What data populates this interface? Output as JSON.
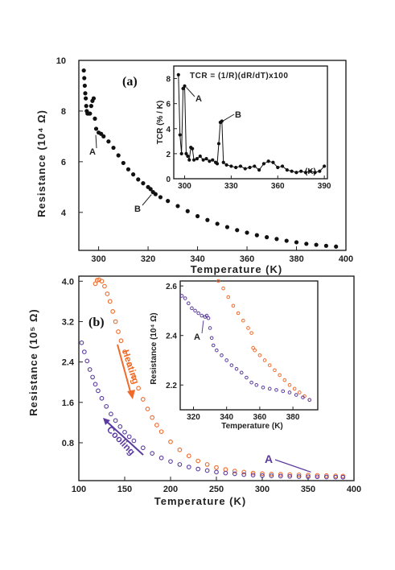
{
  "chart_data": [
    {
      "id": "a",
      "type": "scatter",
      "panel_label": "(a)",
      "xlabel": "Temperature (K)",
      "ylabel": "Resistance (10⁴ Ω)",
      "xlim": [
        292,
        400
      ],
      "ylim": [
        2.5,
        10
      ],
      "xticks": [
        "300",
        "320",
        "340",
        "360",
        "380",
        "400"
      ],
      "yticks": [
        "4",
        "6",
        "8",
        "10"
      ],
      "series": [
        {
          "marker_color": "#111111",
          "points": [
            [
              294,
              9.6
            ],
            [
              294.2,
              9.3
            ],
            [
              294.4,
              9.0
            ],
            [
              294.6,
              8.7
            ],
            [
              294.8,
              8.5
            ],
            [
              295,
              8.2
            ],
            [
              295.2,
              8.0
            ],
            [
              295.5,
              7.9
            ],
            [
              296,
              7.9
            ],
            [
              296.5,
              7.9
            ],
            [
              297,
              8.2
            ],
            [
              297.5,
              8.4
            ],
            [
              298,
              8.5
            ],
            [
              298.5,
              7.7
            ],
            [
              299,
              7.3
            ],
            [
              300,
              7.15
            ],
            [
              301,
              7.1
            ],
            [
              302,
              7.0
            ],
            [
              304,
              6.8
            ],
            [
              306,
              6.55
            ],
            [
              308,
              6.25
            ],
            [
              310,
              5.95
            ],
            [
              312,
              5.7
            ],
            [
              314,
              5.5
            ],
            [
              316,
              5.3
            ],
            [
              318,
              5.15
            ],
            [
              320,
              5.0
            ],
            [
              321,
              4.92
            ],
            [
              322,
              4.8
            ],
            [
              323,
              4.72
            ],
            [
              325,
              4.6
            ],
            [
              328,
              4.45
            ],
            [
              332,
              4.25
            ],
            [
              336,
              4.05
            ],
            [
              340,
              3.85
            ],
            [
              344,
              3.7
            ],
            [
              348,
              3.55
            ],
            [
              352,
              3.42
            ],
            [
              356,
              3.3
            ],
            [
              360,
              3.2
            ],
            [
              364,
              3.1
            ],
            [
              368,
              3.02
            ],
            [
              372,
              2.95
            ],
            [
              376,
              2.88
            ],
            [
              380,
              2.82
            ],
            [
              384,
              2.76
            ],
            [
              388,
              2.72
            ],
            [
              392,
              2.68
            ],
            [
              396,
              2.65
            ]
          ]
        }
      ],
      "annotations": [
        {
          "text": "A",
          "x": 299.5,
          "y": 7.15
        },
        {
          "text": "B",
          "x": 322,
          "y": 4.8
        }
      ]
    },
    {
      "id": "a-inset",
      "type": "line",
      "title": "TCR = (1/R)(dR/dT)x100",
      "xlabel": "(K)",
      "ylabel": "TCR (% / K)",
      "xlim": [
        293,
        392
      ],
      "ylim": [
        0,
        9
      ],
      "xticks": [
        "300",
        "330",
        "360",
        "390"
      ],
      "yticks": [
        "0",
        "2",
        "4",
        "6",
        "8"
      ],
      "series": [
        {
          "line_color": "#111111",
          "points": [
            [
              296,
              8.3
            ],
            [
              297,
              3.5
            ],
            [
              298,
              2.0
            ],
            [
              299,
              7.2
            ],
            [
              300,
              7.4
            ],
            [
              301,
              2.0
            ],
            [
              302,
              1.8
            ],
            [
              303,
              1.5
            ],
            [
              304,
              2.5
            ],
            [
              305,
              2.4
            ],
            [
              306,
              1.5
            ],
            [
              308,
              1.6
            ],
            [
              310,
              1.8
            ],
            [
              312,
              1.5
            ],
            [
              314,
              1.6
            ],
            [
              316,
              1.4
            ],
            [
              318,
              1.5
            ],
            [
              320,
              1.3
            ],
            [
              321,
              1.2
            ],
            [
              322,
              2.8
            ],
            [
              323,
              4.5
            ],
            [
              324,
              4.6
            ],
            [
              325,
              1.3
            ],
            [
              327,
              1.1
            ],
            [
              330,
              1.0
            ],
            [
              333,
              0.9
            ],
            [
              336,
              1.0
            ],
            [
              339,
              0.8
            ],
            [
              342,
              0.9
            ],
            [
              345,
              1.0
            ],
            [
              348,
              0.7
            ],
            [
              351,
              1.2
            ],
            [
              354,
              1.4
            ],
            [
              357,
              1.3
            ],
            [
              360,
              0.9
            ],
            [
              363,
              1.0
            ],
            [
              366,
              0.7
            ],
            [
              369,
              0.6
            ],
            [
              372,
              0.5
            ],
            [
              375,
              0.6
            ],
            [
              378,
              0.5
            ],
            [
              381,
              0.6
            ],
            [
              384,
              0.5
            ],
            [
              387,
              0.6
            ],
            [
              390,
              1.0
            ]
          ]
        }
      ],
      "annotations": [
        {
          "text": "A",
          "x": 300,
          "y": 7.3
        },
        {
          "text": "B",
          "x": 323.5,
          "y": 4.6
        }
      ]
    },
    {
      "id": "b",
      "type": "scatter",
      "panel_label": "(b)",
      "xlabel": "Temperature (K)",
      "ylabel": "Resistance (10⁵ Ω)",
      "xlim": [
        100,
        400
      ],
      "ylim": [
        0.05,
        4.1
      ],
      "xticks": [
        "100",
        "150",
        "200",
        "250",
        "300",
        "350",
        "400"
      ],
      "yticks": [
        "0.8",
        "1.6",
        "2.4",
        "3.2",
        "4.0"
      ],
      "series": [
        {
          "name": "Heating",
          "color": "#f06a2a",
          "points": [
            [
              118,
              3.95
            ],
            [
              120,
              4.02
            ],
            [
              122,
              4.03
            ],
            [
              125,
              4.0
            ],
            [
              128,
              3.9
            ],
            [
              131,
              3.75
            ],
            [
              134,
              3.6
            ],
            [
              137,
              3.4
            ],
            [
              140,
              3.2
            ],
            [
              143,
              3.0
            ],
            [
              146,
              2.82
            ],
            [
              150,
              2.6
            ],
            [
              155,
              2.35
            ],
            [
              160,
              2.1
            ],
            [
              165,
              1.88
            ],
            [
              170,
              1.66
            ],
            [
              175,
              1.47
            ],
            [
              180,
              1.3
            ],
            [
              185,
              1.15
            ],
            [
              190,
              1.02
            ],
            [
              200,
              0.82
            ],
            [
              210,
              0.66
            ],
            [
              220,
              0.54
            ],
            [
              230,
              0.44
            ],
            [
              240,
              0.37
            ],
            [
              250,
              0.31
            ],
            [
              260,
              0.27
            ],
            [
              270,
              0.24
            ],
            [
              280,
              0.22
            ],
            [
              290,
              0.2
            ],
            [
              300,
              0.19
            ],
            [
              310,
              0.18
            ],
            [
              320,
              0.175
            ],
            [
              330,
              0.17
            ],
            [
              340,
              0.165
            ],
            [
              350,
              0.16
            ],
            [
              360,
              0.155
            ],
            [
              370,
              0.15
            ],
            [
              380,
              0.145
            ],
            [
              388,
              0.14
            ]
          ]
        },
        {
          "name": "Cooling",
          "color": "#5b3c9e",
          "points": [
            [
              103,
              2.78
            ],
            [
              106,
              2.6
            ],
            [
              109,
              2.42
            ],
            [
              112,
              2.25
            ],
            [
              115,
              2.1
            ],
            [
              118,
              1.96
            ],
            [
              121,
              1.83
            ],
            [
              125,
              1.68
            ],
            [
              130,
              1.52
            ],
            [
              135,
              1.37
            ],
            [
              140,
              1.24
            ],
            [
              145,
              1.12
            ],
            [
              150,
              1.01
            ],
            [
              155,
              0.92
            ],
            [
              160,
              0.84
            ],
            [
              170,
              0.7
            ],
            [
              180,
              0.59
            ],
            [
              190,
              0.5
            ],
            [
              200,
              0.43
            ],
            [
              210,
              0.37
            ],
            [
              220,
              0.32
            ],
            [
              230,
              0.28
            ],
            [
              240,
              0.25
            ],
            [
              250,
              0.22
            ],
            [
              260,
              0.2
            ],
            [
              270,
              0.185
            ],
            [
              280,
              0.17
            ],
            [
              290,
              0.16
            ],
            [
              300,
              0.15
            ],
            [
              310,
              0.145
            ],
            [
              320,
              0.14
            ],
            [
              330,
              0.135
            ],
            [
              340,
              0.13
            ],
            [
              350,
              0.127
            ],
            [
              360,
              0.125
            ],
            [
              370,
              0.122
            ],
            [
              380,
              0.12
            ],
            [
              388,
              0.118
            ]
          ]
        }
      ],
      "annotations": [
        {
          "text": "Heating",
          "color": "#f06a2a"
        },
        {
          "text": "Cooling",
          "color": "#5b3c9e"
        },
        {
          "text": "A",
          "x": 332,
          "y": 0.14,
          "color": "#5b3c9e"
        }
      ]
    },
    {
      "id": "b-inset",
      "type": "scatter",
      "xlabel": "Temperature (K)",
      "ylabel": "Resistance (10⁴ Ω)",
      "xlim": [
        312,
        395
      ],
      "ylim": [
        2.1,
        2.62
      ],
      "xticks": [
        "320",
        "340",
        "360",
        "380"
      ],
      "yticks": [
        "2.2",
        "2.4",
        "2.6"
      ],
      "series": [
        {
          "name": "Heating",
          "color": "#f06a2a",
          "points": [
            [
              335,
              2.62
            ],
            [
              338,
              2.59
            ],
            [
              341,
              2.555
            ],
            [
              344,
              2.52
            ],
            [
              347,
              2.49
            ],
            [
              350,
              2.46
            ],
            [
              353,
              2.43
            ],
            [
              355,
              2.41
            ],
            [
              356,
              2.35
            ],
            [
              357,
              2.34
            ],
            [
              360,
              2.32
            ],
            [
              363,
              2.3
            ],
            [
              366,
              2.28
            ],
            [
              369,
              2.26
            ],
            [
              372,
              2.24
            ],
            [
              375,
              2.22
            ],
            [
              378,
              2.2
            ],
            [
              381,
              2.185
            ],
            [
              384,
              2.17
            ],
            [
              387,
              2.155
            ],
            [
              390,
              2.14
            ]
          ]
        },
        {
          "name": "Cooling",
          "color": "#5b3c9e",
          "points": [
            [
              313,
              2.56
            ],
            [
              315,
              2.55
            ],
            [
              317,
              2.53
            ],
            [
              319,
              2.51
            ],
            [
              321,
              2.5
            ],
            [
              323,
              2.49
            ],
            [
              325,
              2.48
            ],
            [
              327,
              2.475
            ],
            [
              328,
              2.48
            ],
            [
              329,
              2.47
            ],
            [
              330,
              2.43
            ],
            [
              331,
              2.39
            ],
            [
              332,
              2.36
            ],
            [
              334,
              2.34
            ],
            [
              337,
              2.32
            ],
            [
              340,
              2.3
            ],
            [
              343,
              2.28
            ],
            [
              346,
              2.265
            ],
            [
              349,
              2.25
            ],
            [
              352,
              2.23
            ],
            [
              355,
              2.21
            ],
            [
              358,
              2.2
            ],
            [
              362,
              2.19
            ],
            [
              366,
              2.185
            ],
            [
              370,
              2.18
            ],
            [
              374,
              2.175
            ],
            [
              378,
              2.17
            ],
            [
              382,
              2.16
            ],
            [
              386,
              2.15
            ],
            [
              390,
              2.14
            ]
          ]
        }
      ],
      "annotations": [
        {
          "text": "A",
          "x": 327,
          "y": 2.47,
          "color": "#5b3c9e"
        }
      ]
    }
  ]
}
